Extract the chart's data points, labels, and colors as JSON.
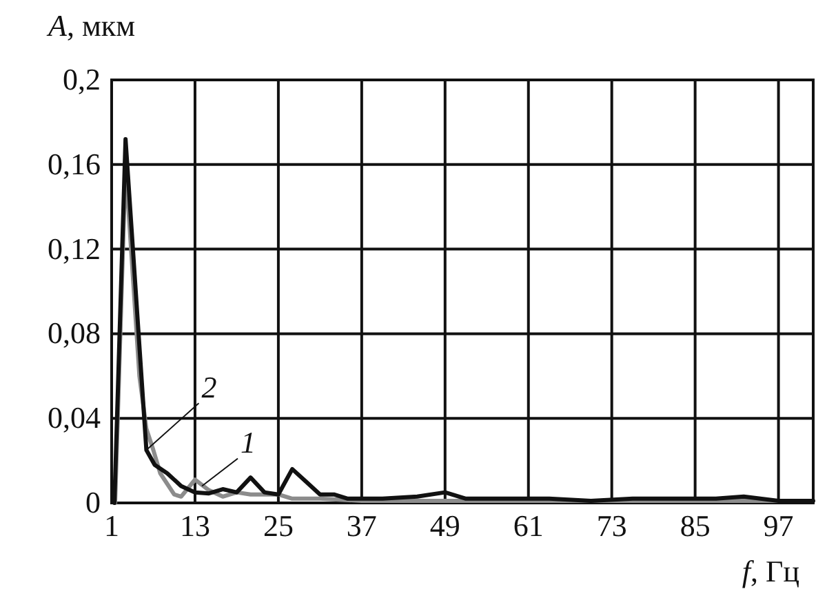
{
  "chart_data": {
    "type": "line",
    "xlabel": "f, Гц",
    "ylabel": "A, мкм",
    "xlim": [
      1,
      102
    ],
    "xticks": [
      1,
      13,
      25,
      37,
      49,
      61,
      73,
      85,
      97
    ],
    "ylim": [
      0,
      0.2
    ],
    "yticks": [
      {
        "value": 0,
        "label": "0"
      },
      {
        "value": 0.04,
        "label": "0,04"
      },
      {
        "value": 0.08,
        "label": "0,08"
      },
      {
        "value": 0.12,
        "label": "0,12"
      },
      {
        "value": 0.16,
        "label": "0,16"
      },
      {
        "value": 0.2,
        "label": "0,2"
      }
    ],
    "grid": true,
    "line_style": "solid",
    "marker": "none",
    "series": [
      {
        "color": "#8c8c8c",
        "x": [
          1.5,
          3,
          5,
          6,
          7,
          8,
          10,
          11,
          13,
          15,
          17,
          19,
          21,
          23,
          25,
          27,
          31,
          37,
          45,
          55,
          65,
          75,
          85,
          97
        ],
        "values": [
          0,
          0.16,
          0.06,
          0.035,
          0.025,
          0.014,
          0.004,
          0.003,
          0.011,
          0.006,
          0.003,
          0.005,
          0.004,
          0.004,
          0.004,
          0.002,
          0.002,
          0.001,
          0.001,
          0.001,
          0.001,
          0.001,
          0.001,
          0.001
        ]
      },
      {
        "color": "#111111",
        "x": [
          1.4,
          3,
          6,
          7.2,
          9,
          11,
          13,
          15,
          17,
          19,
          21,
          23,
          25,
          27,
          29,
          31,
          33,
          35,
          40,
          45,
          49,
          52,
          58,
          64,
          70,
          76,
          82,
          88,
          92,
          97,
          102
        ],
        "values": [
          0,
          0.172,
          0.025,
          0.018,
          0.014,
          0.008,
          0.005,
          0.0045,
          0.0065,
          0.005,
          0.012,
          0.005,
          0.004,
          0.016,
          0.01,
          0.004,
          0.004,
          0.002,
          0.002,
          0.003,
          0.005,
          0.002,
          0.002,
          0.002,
          0.001,
          0.002,
          0.002,
          0.002,
          0.003,
          0.001,
          0.001
        ]
      }
    ],
    "annotations": [
      {
        "text": "2",
        "x": 6,
        "y": 0.025
      },
      {
        "text": "1",
        "x": 14,
        "y": 0.008
      }
    ]
  }
}
